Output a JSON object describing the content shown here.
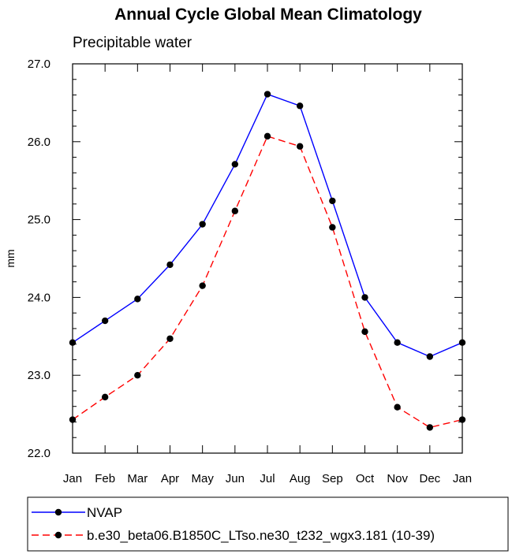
{
  "chart_data": {
    "type": "line",
    "title": "Annual Cycle Global Mean Climatology",
    "subtitle": "Precipitable water",
    "ylabel": "mm",
    "xlabel": "",
    "ylim": [
      22.0,
      27.0
    ],
    "y_ticks": [
      "22.0",
      "23.0",
      "24.0",
      "25.0",
      "26.0",
      "27.0"
    ],
    "categories": [
      "Jan",
      "Feb",
      "Mar",
      "Apr",
      "May",
      "Jun",
      "Jul",
      "Aug",
      "Sep",
      "Oct",
      "Nov",
      "Dec",
      "Jan"
    ],
    "legend_position": "bottom",
    "series": [
      {
        "name": "NVAP",
        "color": "#0000ff",
        "line_style": "solid",
        "marker": "circle",
        "values": [
          23.42,
          23.7,
          23.98,
          24.42,
          24.94,
          25.71,
          26.61,
          26.46,
          25.24,
          24.0,
          23.42,
          23.24,
          23.42
        ]
      },
      {
        "name": "b.e30_beta06.B1850C_LTso.ne30_t232_wgx3.181 (10-39)",
        "color": "#ff0000",
        "line_style": "dashed",
        "marker": "circle",
        "values": [
          22.43,
          22.72,
          23.0,
          23.47,
          24.15,
          25.11,
          26.07,
          25.94,
          24.9,
          23.56,
          22.59,
          22.33,
          22.43
        ]
      }
    ]
  }
}
